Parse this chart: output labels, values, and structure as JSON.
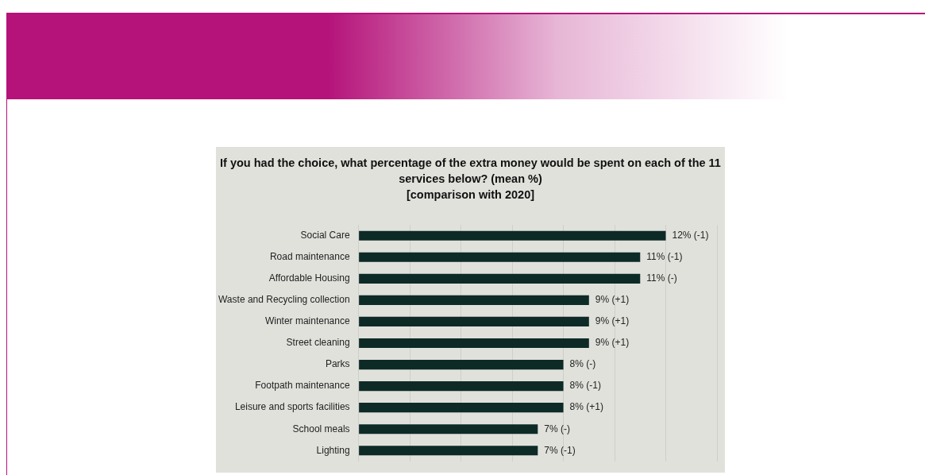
{
  "chart_data": {
    "type": "bar",
    "orientation": "horizontal",
    "title": "If you had the choice, what percentage of the extra money would be spent on each of the 11 services below? (mean %)",
    "subtitle": "[comparison with 2020]",
    "categories": [
      "Social Care",
      "Road maintenance",
      "Affordable Housing",
      "Waste and Recycling collection",
      "Winter maintenance",
      "Street cleaning",
      "Parks",
      "Footpath maintenance",
      "Leisure and sports facilities",
      "School meals",
      "Lighting"
    ],
    "values": [
      12,
      11,
      11,
      9,
      9,
      9,
      8,
      8,
      8,
      7,
      7
    ],
    "value_labels": [
      "12% (-1)",
      "11% (-1)",
      "11% (-)",
      "9% (+1)",
      "9% (+1)",
      "9% (+1)",
      "8% (-)",
      "8% (-1)",
      "8% (+1)",
      "7% (-)",
      "7% (-1)"
    ],
    "color": "#0d2a26",
    "xlim": [
      0,
      14
    ],
    "xticks": [
      {
        "value": 0,
        "label": null
      },
      {
        "value": 2,
        "label": null
      },
      {
        "value": 4,
        "label": null
      },
      {
        "value": 6,
        "label": null
      },
      {
        "value": 8,
        "label": null
      },
      {
        "value": 10,
        "label": null
      },
      {
        "value": 12,
        "label": null
      },
      {
        "value": 14,
        "label": null
      }
    ],
    "grid": "x",
    "tick_labels": "y",
    "legend": false
  }
}
